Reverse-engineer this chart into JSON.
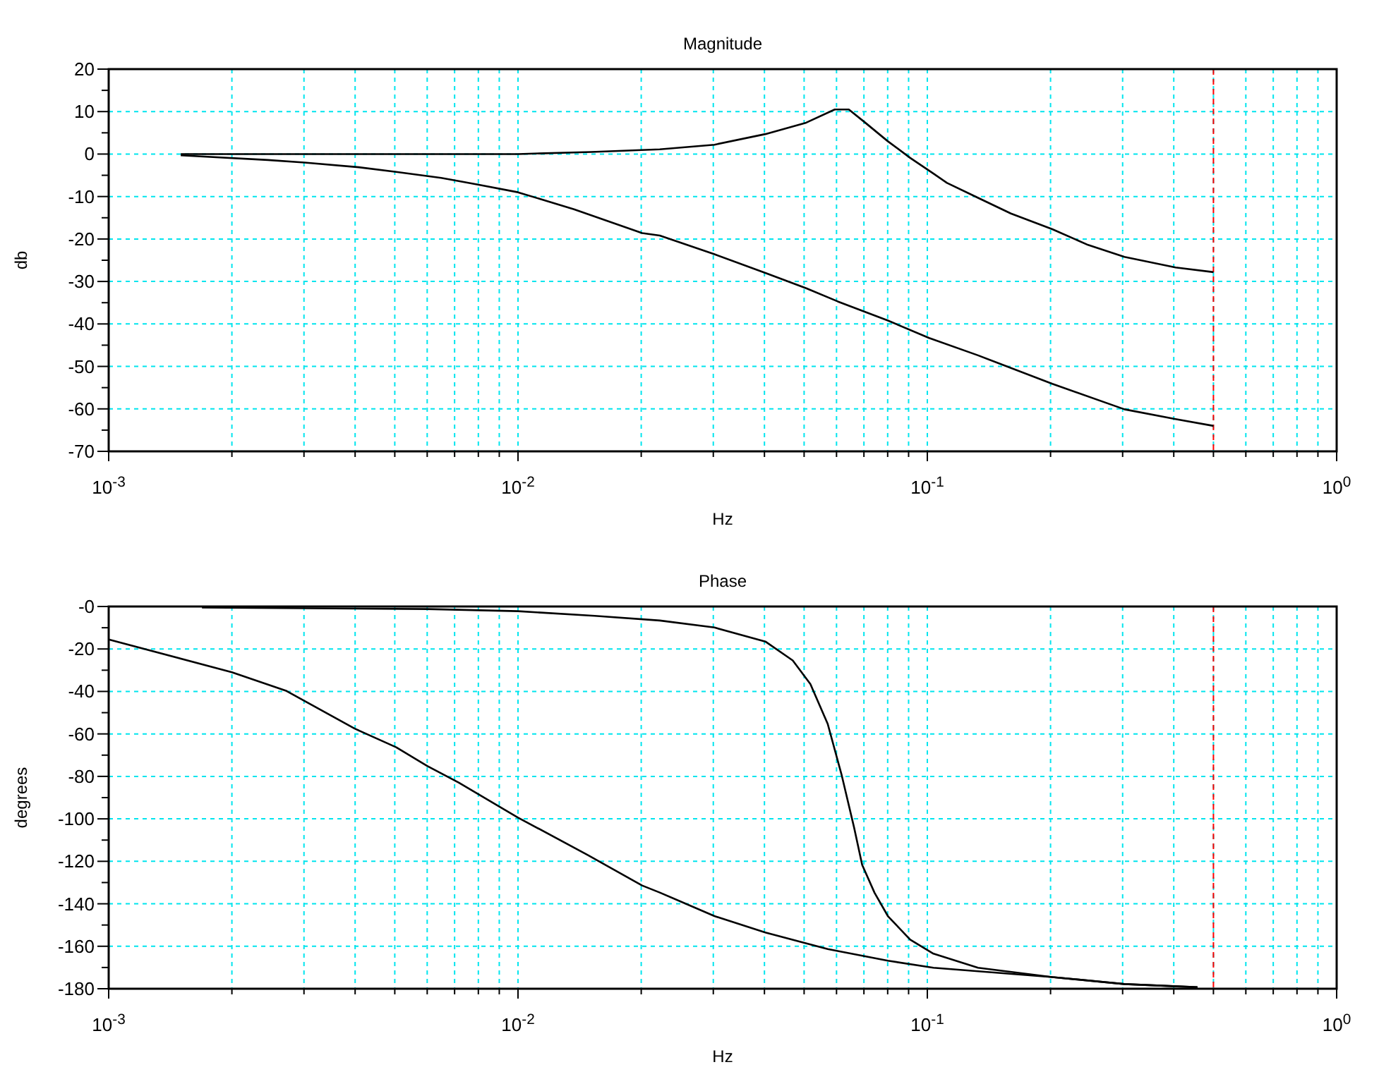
{
  "chart_data": [
    {
      "type": "line",
      "title": "Magnitude",
      "xlabel": "Hz",
      "ylabel": "db",
      "log": "x",
      "grid": true,
      "line_style": "solid",
      "marker": "none",
      "xlim": [
        0.001,
        1
      ],
      "xticks": [
        {
          "value": 0.001,
          "label": "10$^{-3}$"
        },
        {
          "value": 0.002,
          "label": null
        },
        {
          "value": 0.003,
          "label": null
        },
        {
          "value": 0.004,
          "label": null
        },
        {
          "value": 0.005,
          "label": null
        },
        {
          "value": 0.006,
          "label": null
        },
        {
          "value": 0.007,
          "label": null
        },
        {
          "value": 0.008,
          "label": null
        },
        {
          "value": 0.009,
          "label": null
        },
        {
          "value": 0.01,
          "label": "10$^{-2}$"
        },
        {
          "value": 0.02,
          "label": null
        },
        {
          "value": 0.03,
          "label": null
        },
        {
          "value": 0.04,
          "label": null
        },
        {
          "value": 0.05,
          "label": null
        },
        {
          "value": 0.06,
          "label": null
        },
        {
          "value": 0.07,
          "label": null
        },
        {
          "value": 0.08,
          "label": null
        },
        {
          "value": 0.09,
          "label": null
        },
        {
          "value": 0.1,
          "label": "10$^{-1}$"
        },
        {
          "value": 0.2,
          "label": null
        },
        {
          "value": 0.3,
          "label": null
        },
        {
          "value": 0.4,
          "label": null
        },
        {
          "value": 0.5,
          "label": null
        },
        {
          "value": 0.6,
          "label": null
        },
        {
          "value": 0.7,
          "label": null
        },
        {
          "value": 0.8,
          "label": null
        },
        {
          "value": 0.9,
          "label": null
        },
        {
          "value": 1,
          "label": "10$^{0}$"
        }
      ],
      "ylim": [
        -70,
        20
      ],
      "yticks": [
        -70,
        {
          "value": -65,
          "label": null
        },
        -60,
        {
          "value": -55,
          "label": null
        },
        -50,
        {
          "value": -45,
          "label": null
        },
        -40,
        {
          "value": -35,
          "label": null
        },
        -30,
        {
          "value": -25,
          "label": null
        },
        -20,
        {
          "value": -15,
          "label": null
        },
        -10,
        {
          "value": -5,
          "label": null
        },
        0,
        {
          "value": 5,
          "label": null
        },
        10,
        {
          "value": 15,
          "label": null
        },
        20
      ],
      "ref_lines": [
        {
          "axis": "x",
          "value": 0.5,
          "color": "#ff0000",
          "line_style": "dashed"
        }
      ],
      "series": [
        {
          "color": "#000000",
          "x": [
            0.0015,
            0.00258,
            0.00556,
            0.01,
            0.0151,
            0.0222,
            0.0302,
            0.0402,
            0.0506,
            0.0594,
            0.0643,
            0.0705,
            0.0801,
            0.0908,
            0.1035,
            0.1117,
            0.133,
            0.16,
            0.202,
            0.247,
            0.303,
            0.404,
            0.5
          ],
          "values": [
            0,
            0,
            0,
            0,
            0.5,
            1.1,
            2.2,
            4.7,
            7.4,
            10.5,
            10.5,
            7.4,
            3,
            -0.9,
            -4.6,
            -6.8,
            -10.3,
            -14,
            -17.7,
            -21.4,
            -24.2,
            -26.7,
            -27.8
          ]
        },
        {
          "color": "#000000",
          "x": [
            0.0015,
            0.00245,
            0.00301,
            0.00408,
            0.00504,
            0.00649,
            0.00798,
            0.01,
            0.0137,
            0.0201,
            0.0222,
            0.0302,
            0.0402,
            0.0506,
            0.0604,
            0.0801,
            0.101,
            0.133,
            0.202,
            0.303,
            0.404,
            0.5
          ],
          "values": [
            -0.3,
            -1.4,
            -2,
            -3.1,
            -4.2,
            -5.6,
            -7.2,
            -9,
            -13,
            -18.6,
            -19.2,
            -23.6,
            -28,
            -31.6,
            -34.7,
            -39.2,
            -43.3,
            -47.4,
            -54.1,
            -60.1,
            -62.4,
            -64
          ]
        }
      ]
    },
    {
      "type": "line",
      "title": "Phase",
      "xlabel": "Hz",
      "ylabel": "degrees",
      "log": "x",
      "grid": true,
      "line_style": "solid",
      "marker": "none",
      "xlim": [
        0.001,
        1
      ],
      "xticks": [
        {
          "value": 0.001,
          "label": "10$^{-3}$"
        },
        {
          "value": 0.002,
          "label": null
        },
        {
          "value": 0.003,
          "label": null
        },
        {
          "value": 0.004,
          "label": null
        },
        {
          "value": 0.005,
          "label": null
        },
        {
          "value": 0.006,
          "label": null
        },
        {
          "value": 0.007,
          "label": null
        },
        {
          "value": 0.008,
          "label": null
        },
        {
          "value": 0.009,
          "label": null
        },
        {
          "value": 0.01,
          "label": "10$^{-2}$"
        },
        {
          "value": 0.02,
          "label": null
        },
        {
          "value": 0.03,
          "label": null
        },
        {
          "value": 0.04,
          "label": null
        },
        {
          "value": 0.05,
          "label": null
        },
        {
          "value": 0.06,
          "label": null
        },
        {
          "value": 0.07,
          "label": null
        },
        {
          "value": 0.08,
          "label": null
        },
        {
          "value": 0.09,
          "label": null
        },
        {
          "value": 0.1,
          "label": "10$^{-1}$"
        },
        {
          "value": 0.2,
          "label": null
        },
        {
          "value": 0.3,
          "label": null
        },
        {
          "value": 0.4,
          "label": null
        },
        {
          "value": 0.5,
          "label": null
        },
        {
          "value": 0.6,
          "label": null
        },
        {
          "value": 0.7,
          "label": null
        },
        {
          "value": 0.8,
          "label": null
        },
        {
          "value": 0.9,
          "label": null
        },
        {
          "value": 1,
          "label": "10$^{0}$"
        }
      ],
      "ylim": [
        -180,
        0
      ],
      "yticks": [
        -180,
        {
          "value": -170,
          "label": null
        },
        -160,
        {
          "value": -150,
          "label": null
        },
        -140,
        {
          "value": -130,
          "label": null
        },
        -120,
        {
          "value": -110,
          "label": null
        },
        -100,
        {
          "value": -90,
          "label": null
        },
        -80,
        {
          "value": -70,
          "label": null
        },
        -60,
        {
          "value": -50,
          "label": null
        },
        -40,
        {
          "value": -30,
          "label": null
        },
        -20,
        {
          "value": -10,
          "label": null
        },
        {
          "value": 0,
          "label": "-0"
        }
      ],
      "ref_lines": [
        {
          "axis": "x",
          "value": 0.5,
          "color": "#ff0000",
          "line_style": "dashed"
        }
      ],
      "series": [
        {
          "color": "#000000",
          "x": [
            0.00169,
            0.006,
            0.01,
            0.0154,
            0.0222,
            0.0302,
            0.0402,
            0.0469,
            0.0518,
            0.0571,
            0.0618,
            0.0662,
            0.0693,
            0.0743,
            0.0801,
            0.0908,
            0.1035,
            0.133,
            0.202,
            0.303,
            0.457
          ],
          "values": [
            -0.5,
            -1.2,
            -2.2,
            -4.4,
            -6.6,
            -9.9,
            -16.5,
            -25.4,
            -36.5,
            -55.3,
            -79.6,
            -103.9,
            -121.6,
            -134.8,
            -145.8,
            -156.9,
            -163.5,
            -170.1,
            -174.5,
            -177.8,
            -179.3
          ]
        },
        {
          "color": "#000000",
          "x": [
            0.001,
            0.002,
            0.00272,
            0.00399,
            0.00504,
            0.006,
            0.00716,
            0.01,
            0.0148,
            0.0201,
            0.0222,
            0.0302,
            0.0402,
            0.0571,
            0.0801,
            0.1035,
            0.202,
            0.303,
            0.457
          ],
          "values": [
            -15.5,
            -31,
            -39.8,
            -57.5,
            -66.3,
            -75.1,
            -82.9,
            -99.4,
            -117,
            -131.4,
            -134.7,
            -145.8,
            -153.5,
            -161.3,
            -166.8,
            -170.1,
            -174.5,
            -177.8,
            -179.3
          ]
        }
      ]
    }
  ]
}
